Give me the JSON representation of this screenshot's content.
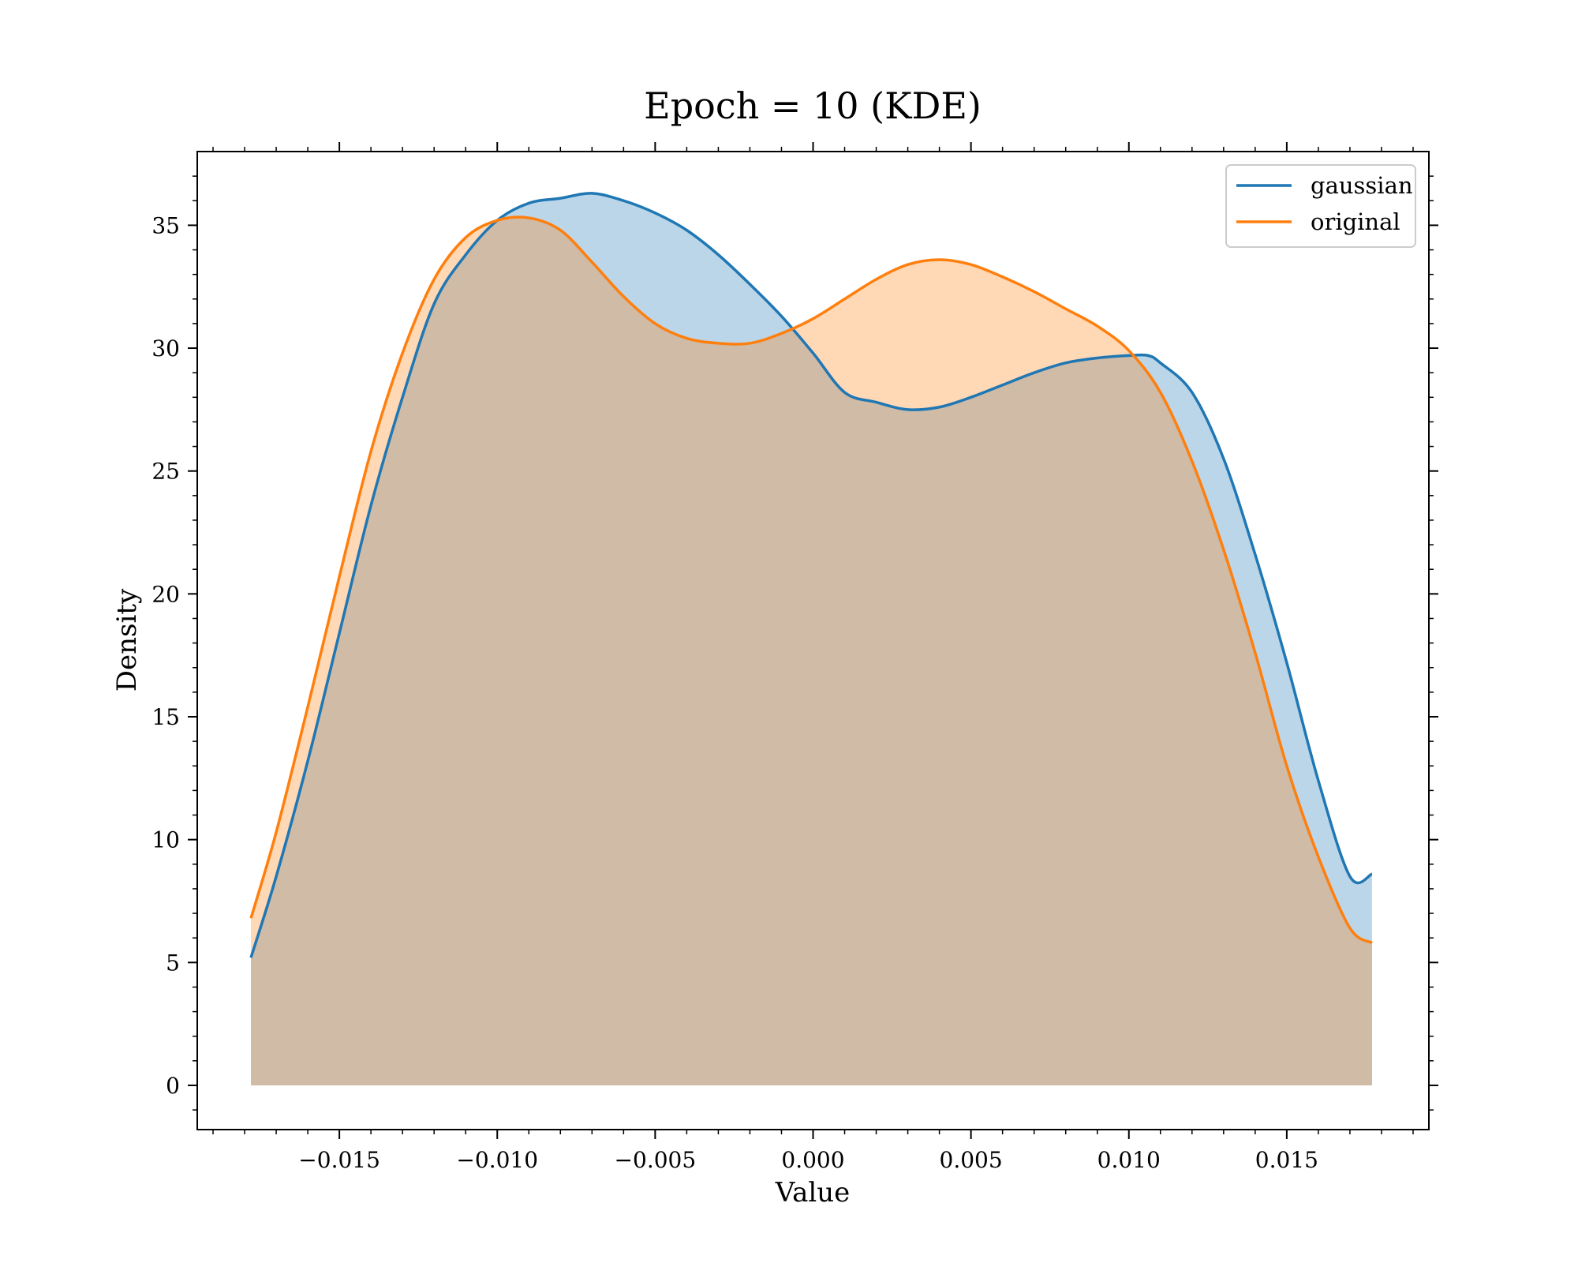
{
  "colors": {
    "gaussian": "#1f77b4",
    "original": "#ff7f0e",
    "gaussian_fill": "#1f77b4",
    "original_fill": "#ff7f0e"
  },
  "chart_data": {
    "type": "area",
    "title": "Epoch = 10 (KDE)",
    "xlabel": "Value",
    "ylabel": "Density",
    "xlim": [
      -0.0195,
      0.0195
    ],
    "ylim": [
      -1.8,
      38
    ],
    "x_ticks": [
      -0.015,
      -0.01,
      -0.005,
      0.0,
      0.005,
      0.01,
      0.015
    ],
    "x_tick_labels": [
      "−0.015",
      "−0.010",
      "−0.005",
      "0.000",
      "0.005",
      "0.010",
      "0.015"
    ],
    "y_ticks": [
      0,
      5,
      10,
      15,
      20,
      25,
      30,
      35
    ],
    "y_tick_labels": [
      "0",
      "5",
      "10",
      "15",
      "20",
      "25",
      "30",
      "35"
    ],
    "grid": false,
    "legend_position": "top-right",
    "series": [
      {
        "name": "gaussian",
        "color": "#1f77b4",
        "x": [
          -0.0178,
          -0.017,
          -0.016,
          -0.015,
          -0.014,
          -0.013,
          -0.012,
          -0.011,
          -0.01,
          -0.009,
          -0.008,
          -0.007,
          -0.006,
          -0.005,
          -0.004,
          -0.003,
          -0.002,
          -0.001,
          0.0,
          0.001,
          0.002,
          0.003,
          0.004,
          0.005,
          0.006,
          0.007,
          0.008,
          0.009,
          0.01,
          0.0106,
          0.011,
          0.012,
          0.013,
          0.014,
          0.015,
          0.016,
          0.017,
          0.0177
        ],
        "y": [
          5.2,
          8.5,
          13.2,
          18.4,
          23.6,
          28.0,
          31.8,
          33.8,
          35.2,
          35.9,
          36.1,
          36.3,
          36.0,
          35.5,
          34.8,
          33.8,
          32.6,
          31.3,
          29.8,
          28.2,
          27.8,
          27.5,
          27.6,
          28.0,
          28.5,
          29.0,
          29.4,
          29.6,
          29.7,
          29.7,
          29.4,
          28.2,
          25.5,
          21.6,
          17.2,
          12.4,
          8.5,
          8.6
        ]
      },
      {
        "name": "original",
        "color": "#ff7f0e",
        "x": [
          -0.0178,
          -0.017,
          -0.016,
          -0.015,
          -0.014,
          -0.013,
          -0.012,
          -0.011,
          -0.01,
          -0.009,
          -0.008,
          -0.007,
          -0.006,
          -0.005,
          -0.004,
          -0.003,
          -0.002,
          -0.001,
          0.0,
          0.001,
          0.002,
          0.003,
          0.004,
          0.005,
          0.006,
          0.007,
          0.008,
          0.009,
          0.01,
          0.011,
          0.012,
          0.013,
          0.014,
          0.015,
          0.016,
          0.017,
          0.0177
        ],
        "y": [
          6.8,
          10.3,
          15.4,
          20.7,
          25.8,
          29.8,
          32.8,
          34.5,
          35.2,
          35.3,
          34.8,
          33.5,
          32.1,
          31.0,
          30.4,
          30.2,
          30.2,
          30.6,
          31.2,
          32.0,
          32.8,
          33.4,
          33.6,
          33.4,
          32.9,
          32.3,
          31.6,
          30.9,
          29.9,
          28.2,
          25.4,
          21.8,
          17.6,
          13.0,
          9.3,
          6.4,
          5.8
        ]
      }
    ]
  }
}
